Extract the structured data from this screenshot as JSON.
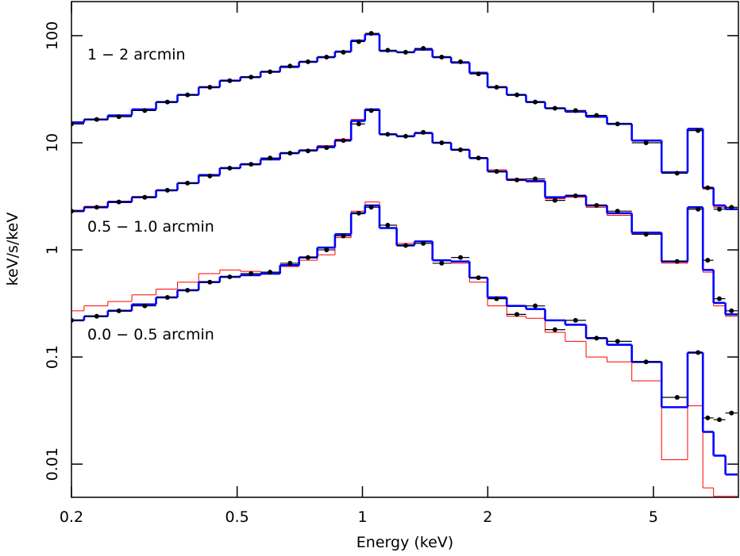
{
  "chart_data": {
    "type": "step-spectrum",
    "x_label": "Energy (keV)",
    "y_label": "keV/s/keV",
    "xscale": "log",
    "yscale": "log",
    "xlim": [
      0.2,
      8.0
    ],
    "ylim": [
      0.0049,
      208
    ],
    "xticks": [
      0.2,
      0.5,
      1,
      2,
      5
    ],
    "yticks": [
      0.01,
      0.1,
      1,
      10,
      100
    ],
    "x": [
      0.2,
      0.23,
      0.26,
      0.3,
      0.34,
      0.38,
      0.43,
      0.48,
      0.54,
      0.6,
      0.67,
      0.74,
      0.82,
      0.9,
      0.98,
      1.05,
      1.15,
      1.27,
      1.4,
      1.55,
      1.72,
      1.9,
      2.1,
      2.35,
      2.6,
      2.9,
      3.25,
      3.65,
      4.1,
      4.8,
      5.7,
      6.4,
      6.75,
      7.2,
      7.7
    ],
    "series": [
      {
        "name": "1 − 2 arcmin",
        "color": "#000000",
        "model_color": "#0000ff",
        "alt_color": "#ff0000",
        "values": [
          15,
          16.5,
          17.5,
          20,
          24,
          28,
          33,
          38,
          41,
          46,
          52,
          57,
          63,
          70,
          88,
          105,
          73,
          70,
          76,
          63,
          57,
          44,
          33,
          28,
          24,
          21,
          20,
          18,
          15,
          10,
          5.2,
          13,
          3.8,
          2.4,
          2.5
        ],
        "model": [
          15.5,
          16.5,
          18,
          20.5,
          24,
          28,
          33,
          38,
          41,
          46,
          51,
          57,
          63,
          71,
          90,
          103,
          72,
          70,
          74,
          63,
          56,
          45,
          33,
          28,
          24,
          21,
          19.5,
          17.5,
          15,
          10.5,
          5.3,
          13.5,
          3.8,
          2.6,
          2.4
        ],
        "alt_model": [
          15.4,
          16.4,
          18,
          20.4,
          24,
          28,
          33,
          38,
          41,
          46,
          51,
          57,
          63,
          71,
          89,
          102,
          72,
          70,
          74,
          63,
          56,
          45,
          33.5,
          28,
          24,
          21,
          19.5,
          17.5,
          15,
          10.4,
          5.2,
          13.3,
          3.7,
          2.5,
          2.4
        ]
      },
      {
        "name": "0.5 − 1.0 arcmin",
        "color": "#000000",
        "model_color": "#0000ff",
        "alt_color": "#ff0000",
        "values": [
          2.3,
          2.5,
          2.8,
          3.1,
          3.6,
          4.2,
          4.9,
          5.8,
          6.3,
          7.2,
          8,
          8.4,
          9,
          10.5,
          15,
          20,
          12,
          11.5,
          12.5,
          10,
          8.6,
          7.2,
          5.4,
          4.5,
          4.6,
          2.9,
          3.2,
          2.6,
          2.3,
          1.4,
          0.78,
          2.4,
          0.8,
          0.35,
          0.27
        ],
        "model": [
          2.3,
          2.5,
          2.8,
          3.1,
          3.6,
          4.2,
          5,
          5.8,
          6.3,
          7,
          8,
          8.5,
          9.2,
          10.5,
          16,
          20.5,
          12,
          11.5,
          12.3,
          10,
          8.6,
          7.2,
          5.4,
          4.5,
          4.4,
          3.1,
          3.2,
          2.6,
          2.2,
          1.45,
          0.78,
          2.5,
          0.65,
          0.32,
          0.25
        ],
        "alt_model": [
          2.35,
          2.55,
          2.85,
          3.15,
          3.6,
          4.2,
          5,
          5.8,
          6.2,
          7,
          8,
          8.5,
          9.4,
          10.8,
          16.5,
          20.5,
          12,
          11.4,
          12.2,
          10,
          8.5,
          7.3,
          5.6,
          4.6,
          4.3,
          3.0,
          3.1,
          2.5,
          2.1,
          1.4,
          0.75,
          2.4,
          0.62,
          0.3,
          0.24
        ]
      },
      {
        "name": "0.0 − 0.5 arcmin",
        "color": "#000000",
        "model_color": "#0000ff",
        "alt_color": "#ff0000",
        "values": [
          0.22,
          0.24,
          0.27,
          0.3,
          0.36,
          0.42,
          0.5,
          0.56,
          0.6,
          0.62,
          0.75,
          0.85,
          1.0,
          1.35,
          2.2,
          2.5,
          1.7,
          1.1,
          1.15,
          0.75,
          0.85,
          0.55,
          0.35,
          0.25,
          0.3,
          0.18,
          0.22,
          0.15,
          0.14,
          0.09,
          0.042,
          0.11,
          0.027,
          0.026,
          0.03
        ],
        "model": [
          0.22,
          0.24,
          0.27,
          0.31,
          0.36,
          0.42,
          0.5,
          0.56,
          0.58,
          0.6,
          0.72,
          0.85,
          1.05,
          1.4,
          2.2,
          2.6,
          1.6,
          1.1,
          1.2,
          0.8,
          0.78,
          0.55,
          0.36,
          0.3,
          0.28,
          0.22,
          0.2,
          0.15,
          0.13,
          0.09,
          0.034,
          0.11,
          0.02,
          0.012,
          0.008
        ],
        "alt_model": [
          0.27,
          0.3,
          0.33,
          0.38,
          0.43,
          0.5,
          0.6,
          0.65,
          0.63,
          0.62,
          0.7,
          0.8,
          0.9,
          1.3,
          2.3,
          2.8,
          1.7,
          1.15,
          1.2,
          0.8,
          0.75,
          0.5,
          0.3,
          0.24,
          0.23,
          0.17,
          0.14,
          0.1,
          0.09,
          0.06,
          0.011,
          0.035,
          0.006,
          0.005,
          0.005
        ]
      }
    ]
  }
}
